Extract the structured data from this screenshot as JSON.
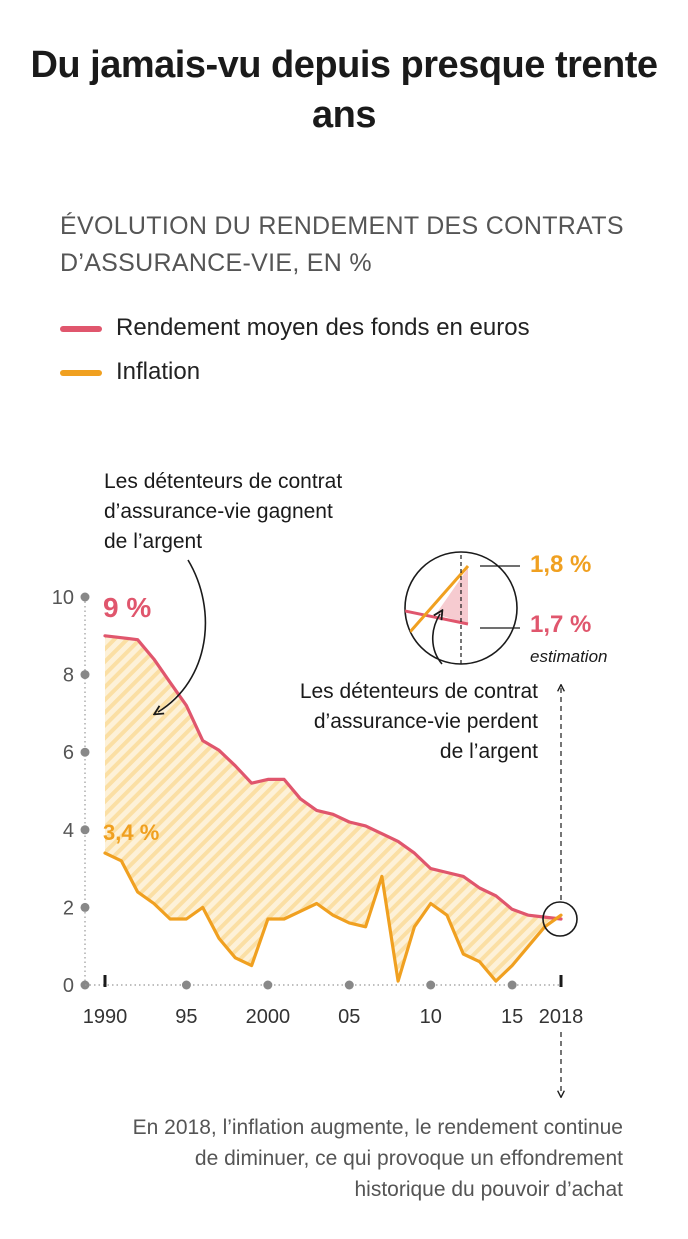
{
  "title": "Du jamais-vu depuis presque trente ans",
  "subtitle": "ÉVOLUTION DU RENDEMENT DES CONTRATS D’ASSURANCE-VIE, EN %",
  "legend": [
    {
      "label": "Rendement moyen des fonds en euros",
      "color": "#e0566d"
    },
    {
      "label": "Inflation",
      "color": "#f0a020"
    }
  ],
  "annotations": {
    "gain": [
      "Les détenteurs de contrat",
      "d’assurance-vie gagnent",
      "de l’argent"
    ],
    "loss": [
      "Les détenteurs de contrat",
      "d’assurance-vie perdent",
      "de l’argent"
    ],
    "start_yield": "9 %",
    "start_inflation": "3,4 %",
    "end_inflation": "1,8 %",
    "end_yield": "1,7 %",
    "estimation": "estimation"
  },
  "footnote": "En 2018, l’inflation augmente, le rendement continue de diminuer, ce qui provoque un effondrement historique du pouvoir d’achat",
  "chart_data": {
    "type": "line",
    "title": "Évolution du rendement des contrats d’assurance-vie, en %",
    "ylim": [
      0,
      10
    ],
    "yticks": [
      0,
      2,
      4,
      6,
      8,
      10
    ],
    "xlim": [
      1990,
      2018
    ],
    "xticks": [
      {
        "value": 1990,
        "label": "1990"
      },
      {
        "value": 1995,
        "label": "95"
      },
      {
        "value": 2000,
        "label": "2000"
      },
      {
        "value": 2005,
        "label": "05"
      },
      {
        "value": 2010,
        "label": "10"
      },
      {
        "value": 2015,
        "label": "15"
      },
      {
        "value": 2018,
        "label": "2018"
      }
    ],
    "x": [
      1990,
      1991,
      1992,
      1993,
      1994,
      1995,
      1996,
      1997,
      1998,
      1999,
      2000,
      2001,
      2002,
      2003,
      2004,
      2005,
      2006,
      2007,
      2008,
      2009,
      2010,
      2011,
      2012,
      2013,
      2014,
      2015,
      2016,
      2017,
      2018
    ],
    "series": [
      {
        "name": "Rendement moyen des fonds en euros",
        "color": "#e0566d",
        "values": [
          9.0,
          8.95,
          8.9,
          8.4,
          7.8,
          7.2,
          6.3,
          6.05,
          5.65,
          5.2,
          5.3,
          5.3,
          4.8,
          4.5,
          4.4,
          4.2,
          4.1,
          3.9,
          3.7,
          3.4,
          3.0,
          2.9,
          2.8,
          2.5,
          2.3,
          1.95,
          1.8,
          1.75,
          1.7
        ]
      },
      {
        "name": "Inflation",
        "color": "#f0a020",
        "values": [
          3.4,
          3.2,
          2.4,
          2.1,
          1.7,
          1.7,
          2.0,
          1.2,
          0.7,
          0.5,
          1.7,
          1.7,
          1.9,
          2.1,
          1.8,
          1.6,
          1.5,
          2.8,
          0.1,
          1.5,
          2.1,
          1.8,
          0.8,
          0.6,
          0.1,
          0.5,
          1.0,
          1.5,
          1.8
        ]
      }
    ]
  }
}
